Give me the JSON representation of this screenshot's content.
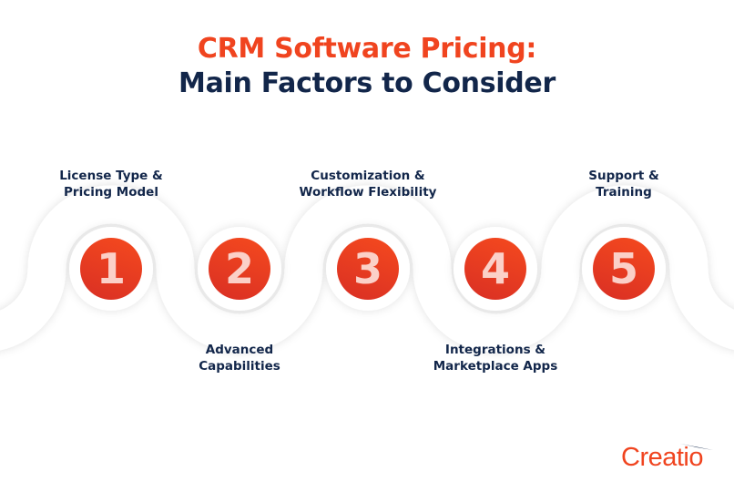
{
  "title": {
    "line1": "CRM Software Pricing:",
    "line2": "Main Factors to Consider"
  },
  "colors": {
    "accent": "#f0441f",
    "navy": "#12264a"
  },
  "steps": [
    {
      "number": "1",
      "line1": "License Type &",
      "line2": "Pricing Model"
    },
    {
      "number": "2",
      "line1": "Advanced",
      "line2": "Capabilities"
    },
    {
      "number": "3",
      "line1": "Customization &",
      "line2": "Workflow Flexibility"
    },
    {
      "number": "4",
      "line1": "Integrations &",
      "line2": "Marketplace Apps"
    },
    {
      "number": "5",
      "line1": "Support &",
      "line2": "Training"
    }
  ],
  "logo": {
    "text": "Creatio"
  }
}
